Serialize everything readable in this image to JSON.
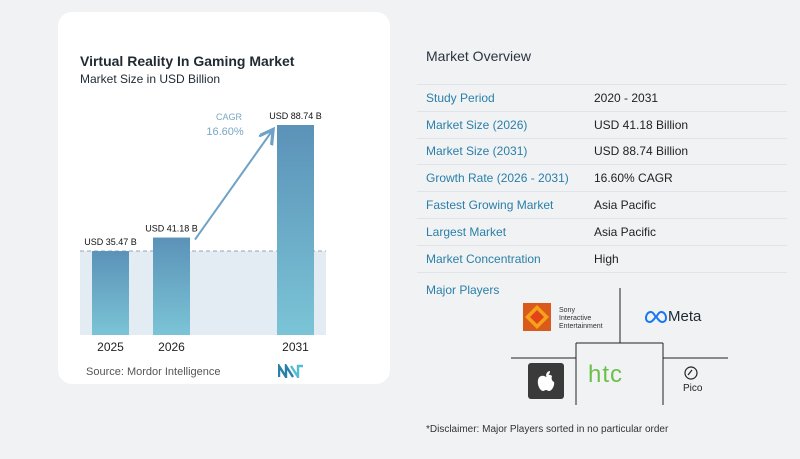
{
  "chart_data": {
    "type": "bar",
    "title": "Virtual Reality In Gaming Market",
    "subtitle": "Market Size in USD Billion",
    "categories": [
      "2025",
      "2026",
      "2031"
    ],
    "values": [
      35.47,
      41.18,
      88.74
    ],
    "value_labels": [
      "USD 35.47 B",
      "USD 41.18 B",
      "USD 88.74 B"
    ],
    "cagr_label": "CAGR",
    "cagr_value": "16.60%",
    "colors": {
      "bar_top": "#5b92b8",
      "bar_bottom": "#7bc4d6",
      "area": "#e3ecf3",
      "arrow": "#6ea2c6"
    }
  },
  "source_text": "Source:  Mordor Intelligence",
  "overview": {
    "title": "Market Overview",
    "rows": [
      {
        "key": "Study Period",
        "value": "2020 - 2031"
      },
      {
        "key": "Market Size (2026)",
        "value": "USD 41.18 Billion"
      },
      {
        "key": "Market Size (2031)",
        "value": "USD 88.74 Billion"
      },
      {
        "key": "Growth Rate (2026 - 2031)",
        "value": "16.60% CAGR"
      },
      {
        "key": "Fastest Growing Market",
        "value": "Asia Pacific"
      },
      {
        "key": "Largest Market",
        "value": "Asia Pacific"
      },
      {
        "key": "Market Concentration",
        "value": "High"
      }
    ]
  },
  "players": {
    "title": "Major Players",
    "sony_text": [
      "Sony",
      "Interactive",
      "Entertainment"
    ],
    "meta_text": "Meta",
    "htc_text": "htc",
    "pico_text": "Pico"
  },
  "disclaimer": "*Disclaimer: Major Players sorted in no particular order"
}
